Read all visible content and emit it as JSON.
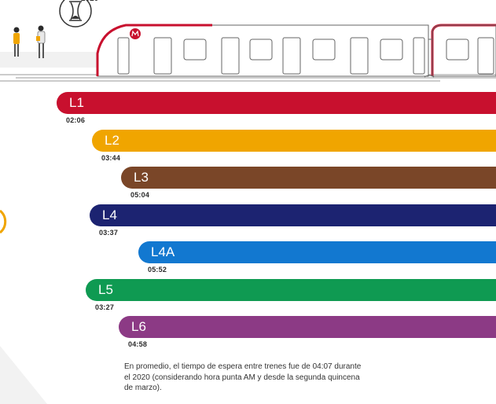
{
  "header": {
    "year": "2020"
  },
  "chart_data": {
    "type": "bar",
    "orientation": "horizontal",
    "categories": [
      "L1",
      "L2",
      "L3",
      "L4",
      "L4A",
      "L5",
      "L6"
    ],
    "series": [
      {
        "values_seconds": [
          126,
          224,
          304,
          217,
          352,
          207,
          298
        ],
        "labels": [
          "02:06",
          "03:44",
          "05:04",
          "03:37",
          "05:52",
          "03:27",
          "04:58"
        ]
      }
    ],
    "colors": [
      "#c8102e",
      "#f0a500",
      "#7a4628",
      "#1c2371",
      "#1278d0",
      "#0f9a52",
      "#8c3a85"
    ]
  },
  "note": "En promedio, el tiempo de espera entre trenes fue de 04:07 durante el 2020 (considerando hora punta AM y desde la segunda quincena de marzo).",
  "icons": [
    "hourglass-icon",
    "commuter-icon",
    "metro-logo-icon",
    "train-icon"
  ]
}
